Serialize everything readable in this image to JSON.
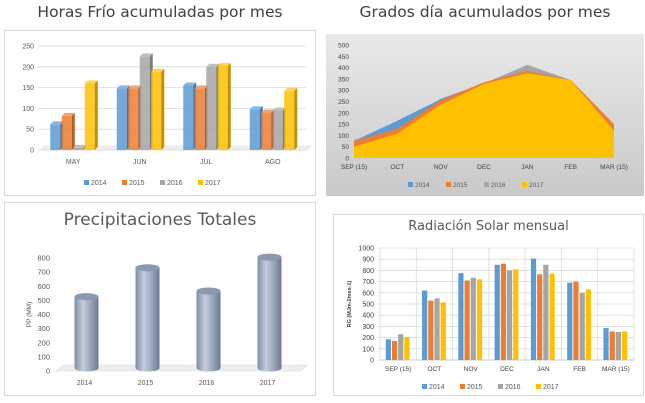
{
  "chart_data": [
    {
      "type": "bar",
      "title": "Horas Frío acumuladas por mes",
      "categories": [
        "MAY",
        "JUN",
        "JUL",
        "AGO"
      ],
      "ylim": [
        0,
        250
      ],
      "yticks": [
        "0",
        "50",
        "100",
        "150",
        "200",
        "250"
      ],
      "grid": true,
      "legend_position": "bottom",
      "series": [
        {
          "name": "2014",
          "color": "#5b9bd5",
          "values": [
            62,
            148,
            155,
            98
          ]
        },
        {
          "name": "2015",
          "color": "#ed7d31",
          "values": [
            82,
            148,
            148,
            90
          ]
        },
        {
          "name": "2016",
          "color": "#a5a5a5",
          "values": [
            5,
            225,
            200,
            95
          ]
        },
        {
          "name": "2017",
          "color": "#ffc000",
          "values": [
            160,
            188,
            202,
            142
          ]
        }
      ]
    },
    {
      "type": "area",
      "title": "Grados día acumulados por mes",
      "categories": [
        "SEP (15)",
        "OCT",
        "NOV",
        "DEC",
        "JAN",
        "FEB",
        "MAR (15)"
      ],
      "ylim": [
        0,
        500
      ],
      "yticks": [
        "0",
        "50",
        "100",
        "150",
        "200",
        "250",
        "300",
        "350",
        "400",
        "450",
        "500"
      ],
      "grid": false,
      "legend_position": "bottom",
      "series": [
        {
          "name": "2014",
          "color": "#5b9bd5",
          "values": [
            75,
            165,
            260,
            330,
            380,
            345,
            135
          ]
        },
        {
          "name": "2015",
          "color": "#ed7d31",
          "values": [
            75,
            130,
            255,
            335,
            385,
            345,
            150
          ]
        },
        {
          "name": "2016",
          "color": "#a5a5a5",
          "values": [
            80,
            130,
            262,
            330,
            412,
            345,
            125
          ]
        },
        {
          "name": "2017",
          "color": "#ffc000",
          "values": [
            50,
            108,
            235,
            328,
            375,
            345,
            120
          ]
        }
      ]
    },
    {
      "type": "bar",
      "title": "Precipitaciones Totales",
      "categories": [
        "2014",
        "2015",
        "2016",
        "2017"
      ],
      "ylabel": "PP (MM)",
      "ylim": [
        0,
        800
      ],
      "yticks": [
        "0",
        "100",
        "200",
        "300",
        "400",
        "500",
        "600",
        "700",
        "800"
      ],
      "grid": false,
      "series": [
        {
          "color": "#8e9db5",
          "values": [
            505,
            710,
            545,
            785
          ]
        }
      ]
    },
    {
      "type": "bar",
      "title": "Radiación Solar mensual",
      "categories": [
        "SEP (15)",
        "OCT",
        "NOV",
        "DEC",
        "JAN",
        "FEB",
        "MAR (15)"
      ],
      "ylabel": "RG (MJm-2mes-1)",
      "ylim": [
        0,
        1000
      ],
      "yticks": [
        "0",
        "100",
        "200",
        "300",
        "400",
        "500",
        "600",
        "700",
        "800",
        "900",
        "1000"
      ],
      "grid": true,
      "legend_position": "bottom",
      "series": [
        {
          "name": "2014",
          "color": "#5b9bd5",
          "values": [
            185,
            620,
            775,
            850,
            905,
            690,
            285
          ]
        },
        {
          "name": "2015",
          "color": "#ed7d31",
          "values": [
            170,
            530,
            710,
            860,
            765,
            700,
            255
          ]
        },
        {
          "name": "2016",
          "color": "#a5a5a5",
          "values": [
            230,
            550,
            735,
            800,
            850,
            600,
            250
          ]
        },
        {
          "name": "2017",
          "color": "#ffc000",
          "values": [
            205,
            515,
            720,
            810,
            770,
            630,
            255
          ]
        }
      ]
    }
  ]
}
